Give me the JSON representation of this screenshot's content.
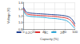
{
  "chart_data": {
    "type": "line",
    "x_label": "Capacity (%)",
    "y_label": "Voltage (V)",
    "x": [
      0,
      5,
      10,
      20,
      30,
      40,
      50,
      60,
      70,
      80,
      85,
      90,
      95,
      100
    ],
    "series": [
      {
        "name": "0.2C",
        "color": "#1f3f8f",
        "values": [
          1.45,
          1.32,
          1.29,
          1.27,
          1.26,
          1.25,
          1.24,
          1.23,
          1.22,
          1.2,
          1.18,
          1.15,
          1.08,
          0.95
        ]
      },
      {
        "name": "1C",
        "color": "#e03030",
        "values": [
          1.4,
          1.27,
          1.24,
          1.22,
          1.21,
          1.2,
          1.19,
          1.18,
          1.16,
          1.14,
          1.12,
          1.08,
          1.0,
          0.88
        ]
      },
      {
        "name": "2C",
        "color": "#30a8d8",
        "values": [
          1.35,
          1.22,
          1.19,
          1.17,
          1.16,
          1.15,
          1.13,
          1.12,
          1.1,
          1.07,
          1.04,
          0.98,
          0.9,
          0.82
        ]
      }
    ],
    "xlim": [
      0,
      100
    ],
    "xticks": [
      0,
      20,
      40,
      60,
      80,
      100
    ],
    "ylim": [
      0.8,
      1.6
    ],
    "yticks": [
      0.8,
      {
        "value": 1,
        "label": "1.0"
      },
      1.2,
      1.4,
      1.6
    ],
    "grid": true,
    "legend": "bottom"
  }
}
